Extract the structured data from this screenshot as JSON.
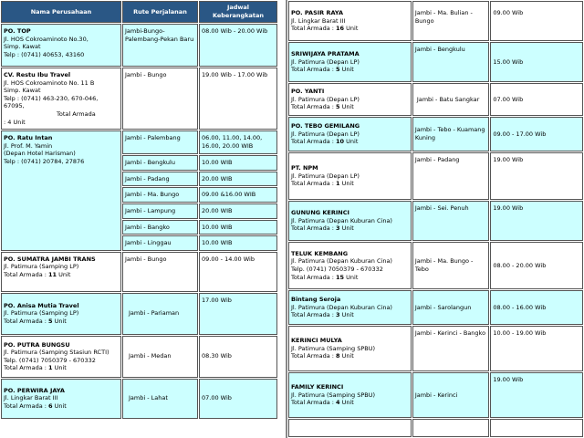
{
  "headers": {
    "company": "Nama Perusahaan",
    "route": "Rute Perjalanan",
    "schedule": "Jadwal Keberangkatan"
  },
  "left_rows": [
    {
      "name": "PO. TOP",
      "details": [
        "Jl. HOS Cokroaminoto No.30,",
        "Simp. Kawat",
        "Telp : (0741) 40653, 43160"
      ],
      "fleet": "",
      "route": "Jambi-Bungo-Palembang-Pekan Baru",
      "schedule": "08.00 Wib - 20.00 Wib"
    },
    {
      "name": "CV. Restu Ibu Travel",
      "details": [
        "Jl. HOS Cokroaminoto No. 11 B",
        "Simp. Kawat",
        "Telp : (0741) 463-230, 670-046, 67095,",
        "Total Armada"
      ],
      "fleet": ": 4 Unit",
      "route": "Jambi - Bungo",
      "schedule": "19.00 Wib - 17.00 Wib"
    },
    {
      "name": "PO. Ratu Intan",
      "details": [
        "Jl. Prof. M. Yamin",
        "(Depan Hotel Harisman)",
        "Telp : (0741) 20784, 27876"
      ],
      "fleet": "",
      "routes": [
        {
          "route": "Jambi - Palembang",
          "schedule": "06.00, 11.00, 14.00, 16.00, 20.00 WIB"
        },
        {
          "route": "Jambi - Bengkulu",
          "schedule": "10.00 WIB"
        },
        {
          "route": "Jambi - Padang",
          "schedule": "20.00 WIB"
        },
        {
          "route": "Jambi - Ma. Bungo",
          "schedule": "09.00 &16.00 WIB"
        },
        {
          "route": "Jambi - Lampung",
          "schedule": "20.00 WIB"
        },
        {
          "route": "Jambi - Bangko",
          "schedule": "10.00 WIB"
        },
        {
          "route": "Jambi - Linggau",
          "schedule": "10.00 WIB"
        }
      ]
    },
    {
      "name": "PO. SUMATRA JAMBI TRANS",
      "details": [
        "Jl. Patimura (Samping LP)"
      ],
      "fleet_label": "Total Armada :",
      "fleet": "11",
      "fleet_suffix": "Unit",
      "route": "Jambi - Bungo",
      "schedule": "09.00 - 14.00 Wib"
    },
    {
      "name": "PO. Anisa Mutia Travel",
      "details": [
        "Jl. Patimura (Samping LP)"
      ],
      "fleet_label": "Total Armada :",
      "fleet": "5",
      "fleet_suffix": "Unit",
      "route": "Jambi - Pariaman",
      "schedule": "17.00 Wib"
    },
    {
      "name": "PO. PUTRA BUNGSU",
      "details": [
        "Jl. Patimura (Samping Stasiun RCTI)",
        "Telp. (0741) 7050379 - 670332"
      ],
      "fleet_label": "Total Armada :",
      "fleet": "1",
      "fleet_suffix": "Unit",
      "route": "Jambi - Medan",
      "schedule": "08.30 Wib"
    },
    {
      "name": "PO. PERWIRA JAYA",
      "details": [
        "Jl. Lingkar Barat III"
      ],
      "fleet_label": "Total Armada :",
      "fleet": "6",
      "fleet_suffix": "Unit",
      "route": "Jambi - Lahat",
      "schedule": "07.00 Wib"
    }
  ],
  "right_rows": [
    {
      "name": "PO. PASIR RAYA",
      "details": [
        "Jl. Lingkar Barat III"
      ],
      "fleet_label": "Total Armada :",
      "fleet": "16",
      "fleet_suffix": "Unit",
      "route": "Jambi - Ma. Bulian - Bungo",
      "schedule": "09.00 Wib"
    },
    {
      "name": "SRIWIJAYA PRATAMA",
      "details": [
        "Jl. Patimura (Depan LP)"
      ],
      "fleet_label": "Total Armada :",
      "fleet": "5",
      "fleet_suffix": "Unit",
      "route": "Jambi - Bengkulu",
      "schedule": "15.00 Wib"
    },
    {
      "name": "PO. YANTI",
      "details": [
        "Jl. Patimura (Depan LP)"
      ],
      "fleet_label": "Total Armada :",
      "fleet": "5",
      "fleet_suffix": "Unit",
      "route": "Jambi - Batu Sangkar",
      "schedule": "07.00 Wib"
    },
    {
      "name": "PO. TEBO GEMILANG",
      "details": [
        "Jl. Patimura (Depan LP)"
      ],
      "fleet_label": "Total Armada :",
      "fleet": "10",
      "fleet_suffix": "Unit",
      "route": "Jambi - Tebo - Kuamang Kuning",
      "schedule": "09.00 - 17.00 Wib"
    },
    {
      "name": "PT. NPM",
      "details": [
        "Jl. Patimura (Depan LP)"
      ],
      "fleet_label": "Total Armada :",
      "fleet": "1",
      "fleet_suffix": "Unit",
      "route": "Jambi - Padang",
      "schedule": "19.00 Wib"
    },
    {
      "name": "GUNUNG KERINCI",
      "details": [
        "Jl. Patimura (Depan Kuburan Cina)"
      ],
      "fleet_label": "Total Armada :",
      "fleet": "3",
      "fleet_suffix": "Unit",
      "route": "Jambi - Sei. Penuh",
      "schedule": "19.00 Wib"
    },
    {
      "name": "TELUK KEMBANG",
      "details": [
        "Jl. Patimura (Depan Kuburan Cina)",
        "Telp. (0741) 7050379 - 670332"
      ],
      "fleet_label": "Total Armada :",
      "fleet": "15",
      "fleet_suffix": "Unit",
      "route": "Jambi - Ma. Bungo - Tebo",
      "schedule": "08.00 - 20.00 Wib"
    },
    {
      "name": "Bintang Seroja",
      "details": [
        "Jl. Patimura (Depan Kuburan Cina)"
      ],
      "fleet_label": "Total Armada :",
      "fleet": "3",
      "fleet_suffix": "Unit",
      "route": "Jambi - Sarolangun",
      "schedule": "08.00 - 16.00 Wib"
    },
    {
      "name": "KERINCI MULYA",
      "details": [
        "Jl. Patimura (Samping SPBU)"
      ],
      "fleet_label": "Total Armada :",
      "fleet": "8",
      "fleet_suffix": "Unit",
      "route": "Jambi - Kerinci - Bangko",
      "schedule": "10.00 - 19.00 Wib"
    },
    {
      "name": "FAMILY KERINCI",
      "details": [
        "Jl. Patimura (Samping SPBU)"
      ],
      "fleet_label": "Total Armada :",
      "fleet": "4",
      "fleet_suffix": "Unit",
      "route": "Jambi - Kerinci",
      "schedule": "19.00 Wib"
    }
  ]
}
